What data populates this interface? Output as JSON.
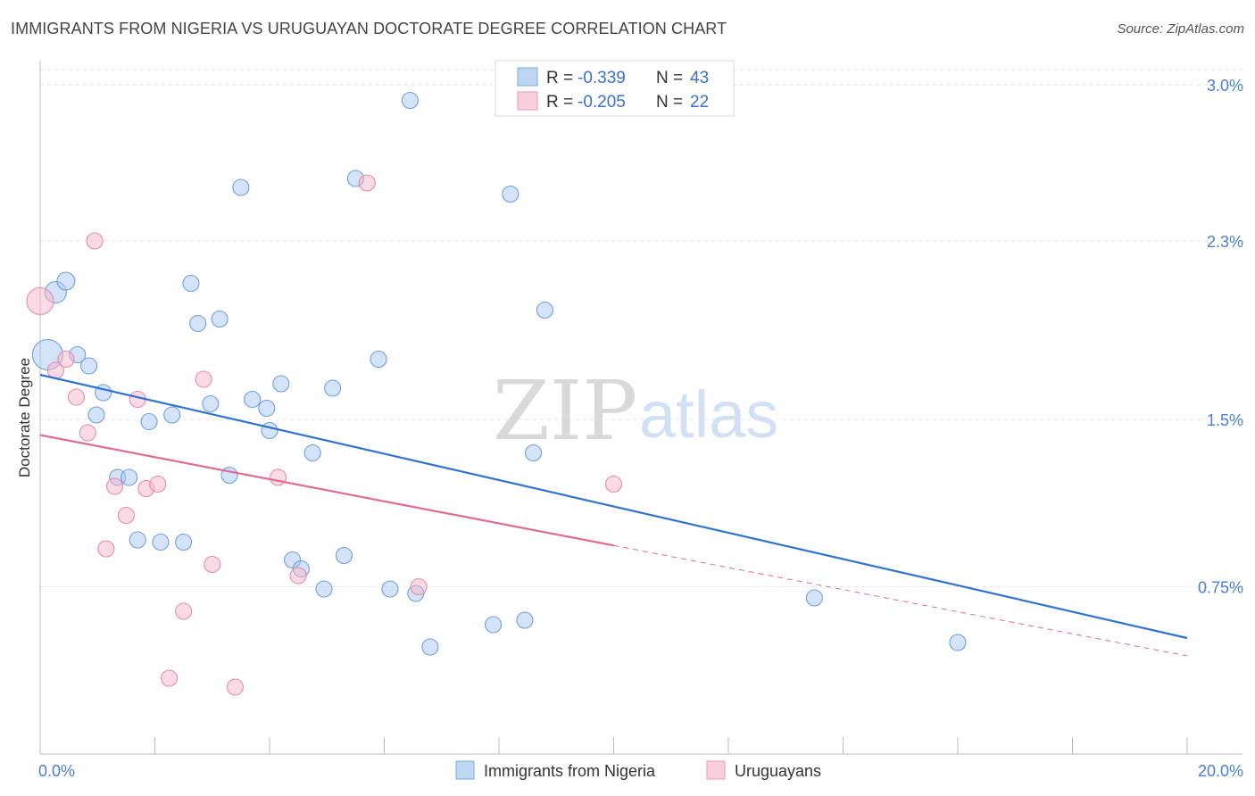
{
  "header": {
    "title": "IMMIGRANTS FROM NIGERIA VS URUGUAYAN DOCTORATE DEGREE CORRELATION CHART",
    "source": "Source: ZipAtlas.com"
  },
  "watermark": {
    "part1": "ZIP",
    "part2": "atlas"
  },
  "legend": {
    "rows": [
      {
        "r_label": "R =",
        "r_value": "-0.339",
        "n_label": "N =",
        "n_value": "43",
        "color": "#a9c8ef"
      },
      {
        "r_label": "R =",
        "r_value": "-0.205",
        "n_label": "N =",
        "n_value": "22",
        "color": "#f6b8cb"
      }
    ]
  },
  "chart_data": {
    "type": "scatter",
    "xlabel": "",
    "ylabel": "Doctorate Degree",
    "xlim": [
      0,
      20
    ],
    "ylim": [
      0,
      3.0
    ],
    "x_tick_labels": [
      "0.0%",
      "20.0%"
    ],
    "y_ticks": [
      0.75,
      1.5,
      2.3,
      3.0
    ],
    "y_tick_labels": [
      "0.75%",
      "1.5%",
      "2.3%",
      "3.0%"
    ],
    "grid": true,
    "legend_position": "bottom-center",
    "series": [
      {
        "name": "Immigrants from Nigeria",
        "color": "#a9c8ef",
        "stroke": "#6f9fdc",
        "trend_color": "#2f72d0",
        "trend": {
          "x0": 0.0,
          "y0": 1.7,
          "x1": 20.0,
          "y1": 0.52,
          "solid_until": 20.0
        },
        "points": [
          [
            0.13,
            1.79,
            17
          ],
          [
            0.27,
            2.07,
            12
          ],
          [
            0.45,
            2.12,
            10
          ],
          [
            0.65,
            1.79,
            9
          ],
          [
            0.85,
            1.74,
            9
          ],
          [
            1.1,
            1.62,
            9
          ],
          [
            0.98,
            1.52,
            9
          ],
          [
            1.35,
            1.24,
            9
          ],
          [
            1.55,
            1.24,
            9
          ],
          [
            1.7,
            0.96,
            9
          ],
          [
            1.9,
            1.49,
            9
          ],
          [
            2.1,
            0.95,
            9
          ],
          [
            2.3,
            1.52,
            9
          ],
          [
            2.5,
            0.95,
            9
          ],
          [
            2.63,
            2.11,
            9
          ],
          [
            2.75,
            1.93,
            9
          ],
          [
            2.97,
            1.57,
            9
          ],
          [
            3.13,
            1.95,
            9
          ],
          [
            3.3,
            1.25,
            9
          ],
          [
            3.5,
            2.54,
            9
          ],
          [
            3.7,
            1.59,
            9
          ],
          [
            3.95,
            1.55,
            9
          ],
          [
            4.0,
            1.45,
            9
          ],
          [
            4.2,
            1.66,
            9
          ],
          [
            4.4,
            0.87,
            9
          ],
          [
            4.55,
            0.83,
            9
          ],
          [
            4.75,
            1.35,
            9
          ],
          [
            4.95,
            0.74,
            9
          ],
          [
            5.1,
            1.64,
            9
          ],
          [
            5.3,
            0.89,
            9
          ],
          [
            5.5,
            2.58,
            9
          ],
          [
            5.9,
            1.77,
            9
          ],
          [
            6.1,
            0.74,
            9
          ],
          [
            6.45,
            2.93,
            9
          ],
          [
            6.55,
            0.72,
            9
          ],
          [
            6.8,
            0.48,
            9
          ],
          [
            7.9,
            0.58,
            9
          ],
          [
            8.2,
            2.51,
            9
          ],
          [
            8.45,
            0.6,
            9
          ],
          [
            8.6,
            1.35,
            9
          ],
          [
            8.8,
            1.99,
            9
          ],
          [
            13.5,
            0.7,
            9
          ],
          [
            16.0,
            0.5,
            9
          ]
        ]
      },
      {
        "name": "Uruguayans",
        "color": "#f6b8cb",
        "stroke": "#e68aa9",
        "trend_color": "#e06b96",
        "trend": {
          "x0": 0.0,
          "y0": 1.43,
          "x1": 20.0,
          "y1": 0.44,
          "solid_until": 10.0
        },
        "points": [
          [
            0.0,
            2.03,
            15
          ],
          [
            0.27,
            1.72,
            9
          ],
          [
            0.45,
            1.77,
            9
          ],
          [
            0.63,
            1.6,
            9
          ],
          [
            0.83,
            1.44,
            9
          ],
          [
            0.95,
            2.3,
            9
          ],
          [
            1.15,
            0.92,
            9
          ],
          [
            1.3,
            1.2,
            9
          ],
          [
            1.5,
            1.07,
            9
          ],
          [
            1.7,
            1.59,
            9
          ],
          [
            1.85,
            1.19,
            9
          ],
          [
            2.05,
            1.21,
            9
          ],
          [
            2.25,
            0.34,
            9
          ],
          [
            2.5,
            0.64,
            9
          ],
          [
            2.85,
            1.68,
            9
          ],
          [
            3.0,
            0.85,
            9
          ],
          [
            3.4,
            0.3,
            9
          ],
          [
            4.15,
            1.24,
            9
          ],
          [
            4.5,
            0.8,
            9
          ],
          [
            5.7,
            2.56,
            9
          ],
          [
            6.6,
            0.75,
            9
          ],
          [
            10.0,
            1.21,
            9
          ]
        ]
      }
    ]
  }
}
